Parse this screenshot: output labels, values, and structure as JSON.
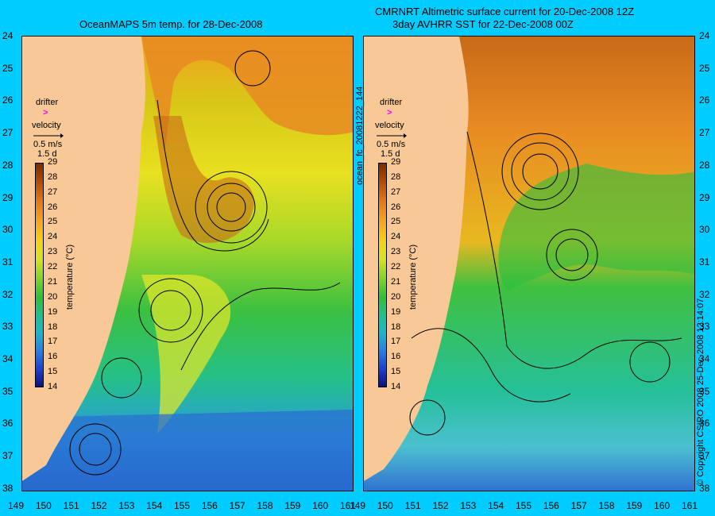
{
  "titles": {
    "left": "OceanMAPS 5m temp. for 28-Dec-2008",
    "right_line1": "CMRNRT Altimetric surface current for 20-Dec-2008 12Z",
    "right_line2": "3day AVHRR SST for 22-Dec-2008 00Z"
  },
  "y_ticks": [
    "24",
    "25",
    "26",
    "27",
    "28",
    "29",
    "30",
    "31",
    "32",
    "33",
    "34",
    "35",
    "36",
    "37",
    "38"
  ],
  "x_ticks": [
    "149",
    "150",
    "151",
    "152",
    "153",
    "154",
    "155",
    "156",
    "157",
    "158",
    "159",
    "160",
    "161"
  ],
  "legend": {
    "drifter": "drifter",
    "drifter_symbol": ">",
    "velocity": "velocity",
    "scale_speed": "0.5 m/s",
    "scale_time": "1.5 d"
  },
  "colorbar": {
    "ticks": [
      "29",
      "28",
      "27",
      "26",
      "25",
      "24",
      "23",
      "22",
      "21",
      "20",
      "19",
      "18",
      "17",
      "16",
      "15",
      "14"
    ],
    "label": "temperature (°C)"
  },
  "side_texts": {
    "product_id": "ocean_fc_20081222_144",
    "copyright": "© Copyright CSIRO 2008   25-Dec-2008 12:14:07"
  },
  "colors": {
    "background": "#00ccff",
    "land": "#f8c896",
    "drifter": "#ff00ff"
  },
  "map": {
    "lat_range": [
      -38.5,
      -24
    ],
    "lon_range": [
      149,
      161
    ]
  }
}
